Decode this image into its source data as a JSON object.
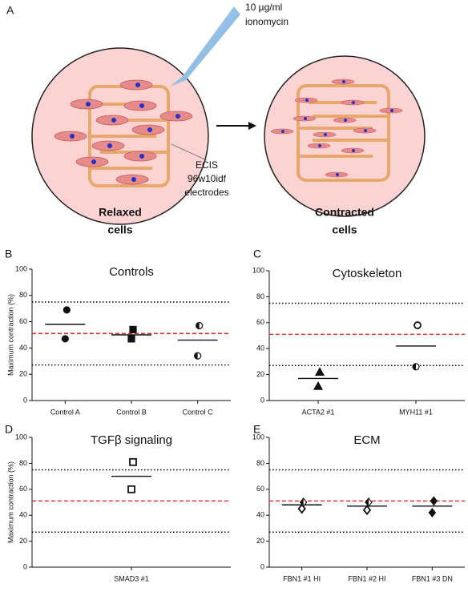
{
  "diagram": {
    "panel": "A",
    "reagent": [
      "10 µg/ml",
      "ionomycin"
    ],
    "electrode_label": [
      "ECIS",
      "96w10idf",
      "electrodes"
    ],
    "left_label": [
      "Relaxed",
      "cells"
    ],
    "right_label": [
      "Contracted",
      "cells"
    ]
  },
  "chart_data": [
    {
      "type": "dot",
      "panel": "B",
      "title": "Controls",
      "ylabel": "Maximum contraction (%)",
      "categories": [
        "Control A",
        "Control B",
        "Control C"
      ],
      "values": [
        [
          69,
          47
        ],
        [
          54,
          47
        ],
        [
          57,
          34
        ]
      ],
      "means": [
        58,
        50,
        46
      ],
      "markers": [
        [
          "circle-filled",
          "circle-filled"
        ],
        [
          "square-filled",
          "square-filled"
        ],
        [
          "circle-half",
          "circle-half"
        ]
      ],
      "ylim": [
        0,
        100
      ],
      "yticks": [
        0,
        20,
        40,
        60,
        80,
        100
      ],
      "reference_lines": [
        {
          "value": 75,
          "style": "dotted",
          "color": "#000000"
        },
        {
          "value": 51,
          "style": "dashed",
          "color": "#e0312d"
        },
        {
          "value": 27,
          "style": "dotted",
          "color": "#000000"
        }
      ]
    },
    {
      "type": "dot",
      "panel": "C",
      "title": "Cytoskeleton",
      "categories": [
        "ACTA2 #1",
        "MYH11 #1"
      ],
      "values": [
        [
          22,
          11
        ],
        [
          58,
          26
        ]
      ],
      "means": [
        17,
        42
      ],
      "markers": [
        [
          "triangle-filled",
          "triangle-filled"
        ],
        [
          "circle-open",
          "circle-half"
        ]
      ],
      "ylim": [
        0,
        100
      ],
      "yticks": [
        0,
        20,
        40,
        60,
        80,
        100
      ],
      "reference_lines": [
        {
          "value": 75,
          "style": "dotted",
          "color": "#000000"
        },
        {
          "value": 51,
          "style": "dashed",
          "color": "#e0312d"
        },
        {
          "value": 27,
          "style": "dotted",
          "color": "#000000"
        }
      ]
    },
    {
      "type": "dot",
      "panel": "D",
      "title": "TGFβ signaling",
      "ylabel": "Maximum contraction (%)",
      "categories": [
        "SMAD3 #1"
      ],
      "values": [
        [
          81,
          60
        ]
      ],
      "means": [
        70
      ],
      "markers": [
        [
          "square-open",
          "square-open"
        ]
      ],
      "ylim": [
        0,
        100
      ],
      "yticks": [
        0,
        20,
        40,
        60,
        80,
        100
      ],
      "reference_lines": [
        {
          "value": 75,
          "style": "dotted",
          "color": "#000000"
        },
        {
          "value": 51,
          "style": "dashed",
          "color": "#e0312d"
        },
        {
          "value": 27,
          "style": "dotted",
          "color": "#000000"
        }
      ]
    },
    {
      "type": "dot",
      "panel": "E",
      "title": "ECM",
      "categories": [
        "FBN1 #1 HI",
        "FBN1 #2 HI",
        "FBN1 #3 DN"
      ],
      "values": [
        [
          50,
          45
        ],
        [
          50,
          44
        ],
        [
          51,
          42
        ]
      ],
      "means": [
        48,
        47,
        47
      ],
      "markers": [
        [
          "diamond-half",
          "diamond-open"
        ],
        [
          "diamond-half",
          "diamond-open"
        ],
        [
          "diamond-filled",
          "diamond-filled"
        ]
      ],
      "ylim": [
        0,
        100
      ],
      "yticks": [
        0,
        20,
        40,
        60,
        80,
        100
      ],
      "reference_lines": [
        {
          "value": 75,
          "style": "dotted",
          "color": "#000000"
        },
        {
          "value": 51,
          "style": "dashed",
          "color": "#e0312d"
        },
        {
          "value": 27,
          "style": "dotted",
          "color": "#000000"
        }
      ]
    }
  ]
}
